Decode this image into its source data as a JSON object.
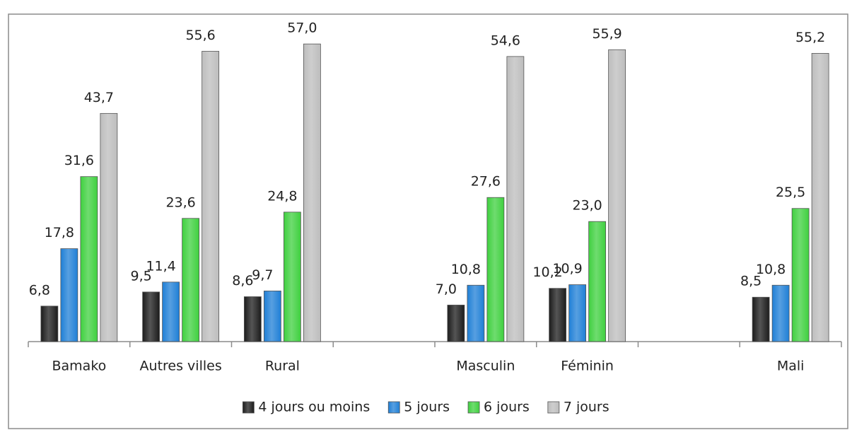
{
  "chart_data": {
    "type": "bar",
    "categories": [
      "Bamako",
      "Autres villes",
      "Rural",
      null,
      "Masculin",
      "Féminin",
      null,
      "Mali"
    ],
    "series": [
      {
        "name": "4 jours ou moins",
        "color": "#1c1c1c",
        "values": [
          6.8,
          9.5,
          8.6,
          null,
          7.0,
          10.2,
          null,
          8.5
        ],
        "value_labels": [
          "6,8",
          "9,5",
          "8,6",
          null,
          "7,0",
          "10,2",
          null,
          "8,5"
        ]
      },
      {
        "name": "5 jours",
        "color": "#1f7fd6",
        "values": [
          17.8,
          11.4,
          9.7,
          null,
          10.8,
          10.9,
          null,
          10.8
        ],
        "value_labels": [
          "17,8",
          "11,4",
          "9,7",
          null,
          "10,8",
          "10,9",
          null,
          "10,8"
        ]
      },
      {
        "name": "6 jours",
        "color": "#3fd03f",
        "values": [
          31.6,
          23.6,
          24.8,
          null,
          27.6,
          23.0,
          null,
          25.5
        ],
        "value_labels": [
          "31,6",
          "23,6",
          "24,8",
          null,
          "27,6",
          "23,0",
          null,
          "25,5"
        ]
      },
      {
        "name": "7 jours",
        "color": "#bdbdbd",
        "values": [
          43.7,
          55.6,
          57.0,
          null,
          54.6,
          55.9,
          null,
          55.2
        ],
        "value_labels": [
          "43,7",
          "55,6",
          "57,0",
          null,
          "54,6",
          "55,9",
          null,
          "55,2"
        ]
      }
    ],
    "ylim": [
      0,
      60
    ],
    "legend": "bottom"
  }
}
